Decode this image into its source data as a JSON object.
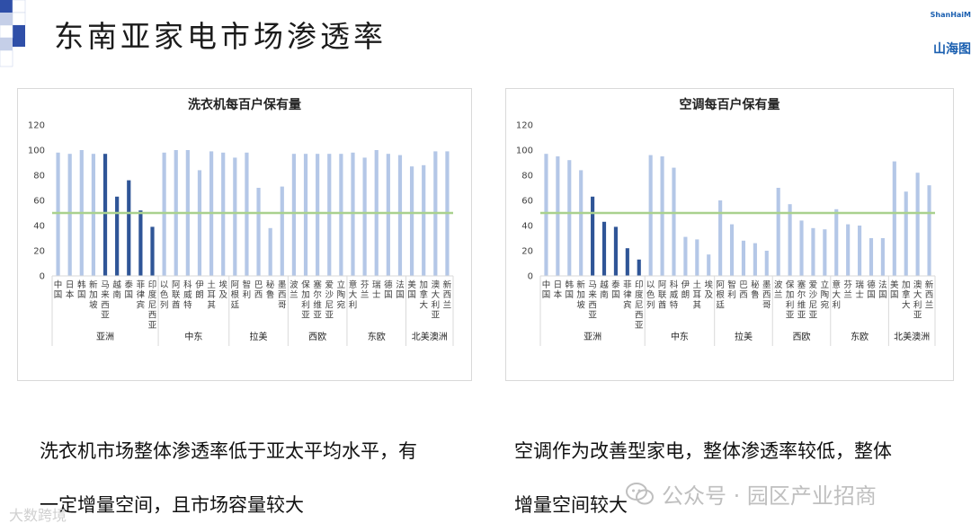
{
  "page": {
    "title": "东南亚家电市场渗透率",
    "logo_en": "ShanHaiM",
    "logo_cn": "山海图"
  },
  "captions": {
    "left": [
      "洗衣机市场整体渗透率低于亚太平均水平，有",
      "一定增量空间，且市场容量较大"
    ],
    "right": [
      "空调作为改善型家电，整体渗透率较低，整体",
      "增量空间较大"
    ]
  },
  "watermarks": {
    "wechat": "公众号 · 园区产业招商",
    "bottom_left": "大数跨境"
  },
  "colors": {
    "bar_light": "#b4c7e7",
    "bar_dark": "#2f5597",
    "ref_line": "#a9d18e",
    "axis": "#d9d9d9",
    "text": "#404040"
  },
  "chart_data": [
    {
      "type": "bar",
      "title": "洗衣机每百户保有量",
      "ylim": [
        0,
        120
      ],
      "yticks": [
        0,
        20,
        40,
        60,
        80,
        100,
        120
      ],
      "reference_line": 50,
      "categories": [
        "中国",
        "日本",
        "韩国",
        "新加坡",
        "马来西亚",
        "越南",
        "泰国",
        "菲律宾",
        "印度尼西亚",
        "以色列",
        "阿联酋",
        "科威特",
        "伊朗",
        "土耳其",
        "埃及",
        "阿根廷",
        "智利",
        "巴西",
        "秘鲁",
        "墨西哥",
        "波兰",
        "保加利亚",
        "塞尔维亚",
        "爱沙尼亚",
        "立陶宛",
        "意大利",
        "芬兰",
        "瑞士",
        "德国",
        "法国",
        "美国",
        "加拿大",
        "澳大利亚",
        "新西兰"
      ],
      "values": [
        98,
        97,
        100,
        97,
        97,
        63,
        76,
        52,
        39,
        98,
        100,
        100,
        84,
        99,
        98,
        94,
        98,
        70,
        38,
        71,
        97,
        97,
        97,
        97,
        97,
        98,
        94,
        100,
        97,
        96,
        87,
        88,
        99,
        99
      ],
      "highlight": [
        4,
        5,
        6,
        7,
        8
      ],
      "groups": [
        {
          "name": "亚洲",
          "start": 0,
          "end": 8
        },
        {
          "name": "中东",
          "start": 9,
          "end": 14
        },
        {
          "name": "拉美",
          "start": 15,
          "end": 19
        },
        {
          "name": "西欧",
          "start": 20,
          "end": 24
        },
        {
          "name": "东欧",
          "start": 25,
          "end": 29
        },
        {
          "name": "北美澳洲",
          "start": 30,
          "end": 33
        }
      ]
    },
    {
      "type": "bar",
      "title": "空调每百户保有量",
      "ylim": [
        0,
        120
      ],
      "yticks": [
        0,
        20,
        40,
        60,
        80,
        100,
        120
      ],
      "reference_line": 50,
      "categories": [
        "中国",
        "日本",
        "韩国",
        "新加坡",
        "马来西亚",
        "越南",
        "泰国",
        "菲律宾",
        "印度尼西亚",
        "以色列",
        "阿联酋",
        "科威特",
        "伊朗",
        "土耳其",
        "埃及",
        "阿根廷",
        "智利",
        "巴西",
        "秘鲁",
        "墨西哥",
        "波兰",
        "保加利亚",
        "塞尔维亚",
        "爱沙尼亚",
        "立陶宛",
        "意大利",
        "芬兰",
        "瑞士",
        "德国",
        "法国",
        "美国",
        "加拿大",
        "澳大利亚",
        "新西兰"
      ],
      "values": [
        97,
        95,
        92,
        84,
        63,
        43,
        39,
        22,
        13,
        96,
        95,
        86,
        31,
        29,
        17,
        60,
        41,
        28,
        26,
        20,
        70,
        57,
        44,
        38,
        37,
        53,
        41,
        40,
        30,
        30,
        91,
        67,
        82,
        72
      ],
      "highlight": [
        4,
        5,
        6,
        7,
        8
      ],
      "groups": [
        {
          "name": "亚洲",
          "start": 0,
          "end": 8
        },
        {
          "name": "中东",
          "start": 9,
          "end": 14
        },
        {
          "name": "拉美",
          "start": 15,
          "end": 19
        },
        {
          "name": "西欧",
          "start": 20,
          "end": 24
        },
        {
          "name": "东欧",
          "start": 25,
          "end": 29
        },
        {
          "name": "北美澳洲",
          "start": 30,
          "end": 33
        }
      ]
    }
  ]
}
